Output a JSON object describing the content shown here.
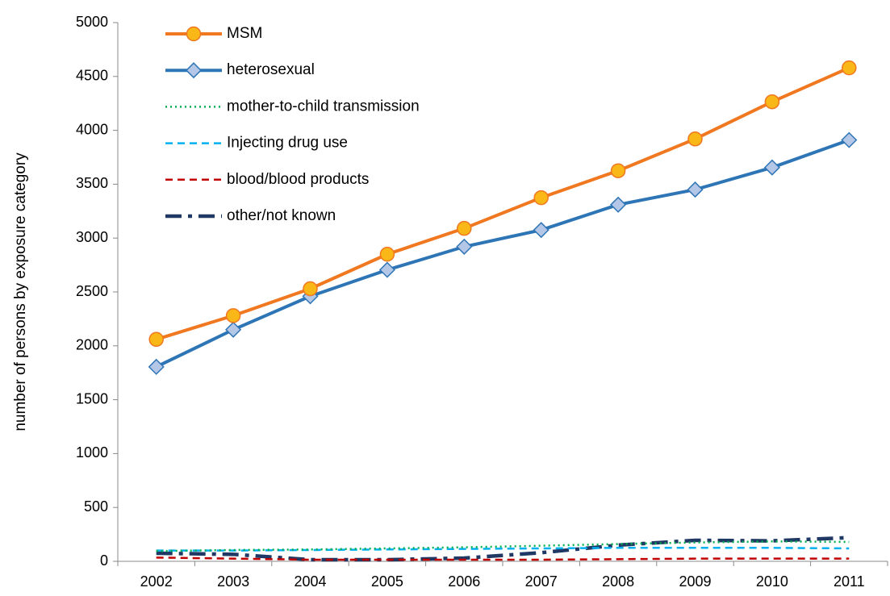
{
  "chart_data": {
    "type": "line",
    "y_label": "number of persons by exposure category",
    "categories": [
      "2002",
      "2003",
      "2004",
      "2005",
      "2006",
      "2007",
      "2008",
      "2009",
      "2010",
      "2011"
    ],
    "series": [
      {
        "name": "MSM",
        "color": "#f07820",
        "marker": "circle",
        "marker_fill": "#f9b718",
        "line_style": "solid",
        "values": [
          2060,
          2280,
          2530,
          2850,
          3090,
          3375,
          3625,
          3920,
          4265,
          4580
        ]
      },
      {
        "name": "heterosexual",
        "color": "#2e75b6",
        "marker": "diamond",
        "marker_fill": "#b4c7e7",
        "line_style": "solid",
        "values": [
          1805,
          2150,
          2460,
          2705,
          2920,
          3075,
          3310,
          3450,
          3655,
          3910
        ]
      },
      {
        "name": "mother-to-child transmission",
        "color": "#00b050",
        "line_style": "dotted",
        "values": [
          95,
          105,
          110,
          120,
          130,
          145,
          160,
          175,
          185,
          180
        ]
      },
      {
        "name": "Injecting drug use",
        "color": "#00b0f0",
        "line_style": "dashed",
        "values": [
          100,
          100,
          105,
          110,
          115,
          120,
          125,
          125,
          125,
          120
        ]
      },
      {
        "name": "blood/blood products",
        "color": "#c00000",
        "line_style": "dashed",
        "values": [
          35,
          25,
          15,
          15,
          15,
          15,
          20,
          25,
          25,
          25
        ]
      },
      {
        "name": "other/not known",
        "color": "#1f3864",
        "line_style": "longdash",
        "values": [
          75,
          65,
          15,
          15,
          30,
          80,
          150,
          195,
          190,
          220
        ]
      }
    ],
    "ylim": [
      0,
      5000
    ],
    "yticks": [
      0,
      500,
      1000,
      1500,
      2000,
      2500,
      3000,
      3500,
      4000,
      4500,
      5000
    ],
    "legend": "top-left",
    "grid": false
  }
}
